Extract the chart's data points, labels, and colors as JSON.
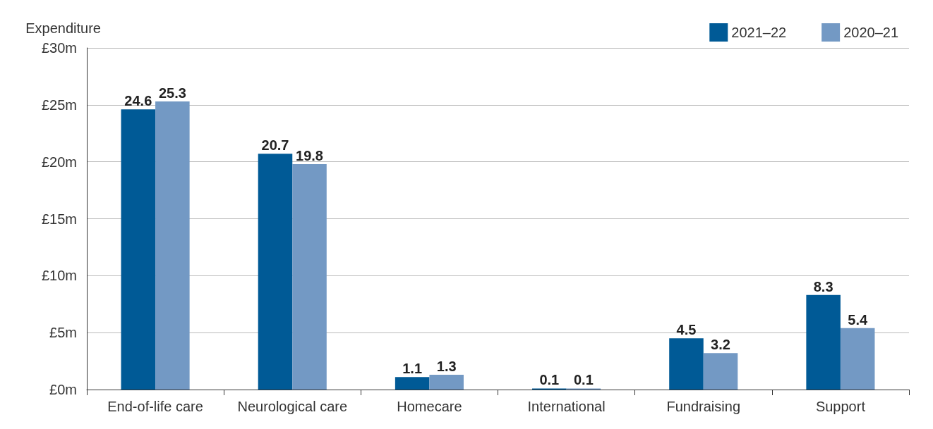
{
  "chart_data": {
    "type": "bar",
    "ylabel": "Expenditure",
    "categories": [
      "End-of-life care",
      "Neurological care",
      "Homecare",
      "International",
      "Fundraising",
      "Support"
    ],
    "series": [
      {
        "name": "2021–22",
        "color": "#005a96",
        "values": [
          24.6,
          20.7,
          1.1,
          0.1,
          4.5,
          8.3
        ]
      },
      {
        "name": "2020–21",
        "color": "#7399c4",
        "values": [
          25.3,
          19.8,
          1.3,
          0.1,
          3.2,
          5.4
        ]
      }
    ],
    "ylim": [
      0,
      30
    ],
    "yticks": [
      {
        "value": 0,
        "label": "£0m"
      },
      {
        "value": 5,
        "label": "£5m"
      },
      {
        "value": 10,
        "label": "£10m"
      },
      {
        "value": 15,
        "label": "£15m"
      },
      {
        "value": 20,
        "label": "£20m"
      },
      {
        "value": 25,
        "label": "£25m"
      },
      {
        "value": 30,
        "label": "£30m"
      }
    ],
    "grid": "y",
    "legend": "top right",
    "data_labels": true
  }
}
